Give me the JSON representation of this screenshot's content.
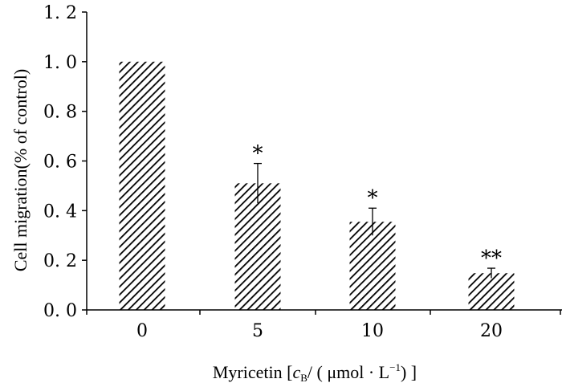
{
  "chart_data": {
    "type": "bar",
    "title": "",
    "xlabel": "Myricetin [cB/(µmol · L⁻¹)]",
    "xlabel_parts": {
      "prefix": "Myricetin [",
      "var": "c",
      "var_sub": "B",
      "middle": "/ ( μmol · L",
      "sup": "−1",
      "suffix": ")  ]"
    },
    "ylabel": "Cell migration(% of control)",
    "categories": [
      "0",
      "5",
      "10",
      "20"
    ],
    "values": [
      1.0,
      0.51,
      0.355,
      0.148
    ],
    "errors": [
      0,
      0.08,
      0.055,
      0.02
    ],
    "significance": [
      "",
      "*",
      "*",
      "**"
    ],
    "ylim": [
      0,
      1.2
    ],
    "yticks": [
      0.0,
      0.2,
      0.4,
      0.6,
      0.8,
      1.0,
      1.2
    ],
    "ytick_labels": [
      "0. 0",
      "0. 2",
      "0. 4",
      "0. 6",
      "0. 8",
      "1. 0",
      "1. 2"
    ],
    "bar_pattern": "diagonal-hatch",
    "grid": false,
    "legend": "none"
  }
}
